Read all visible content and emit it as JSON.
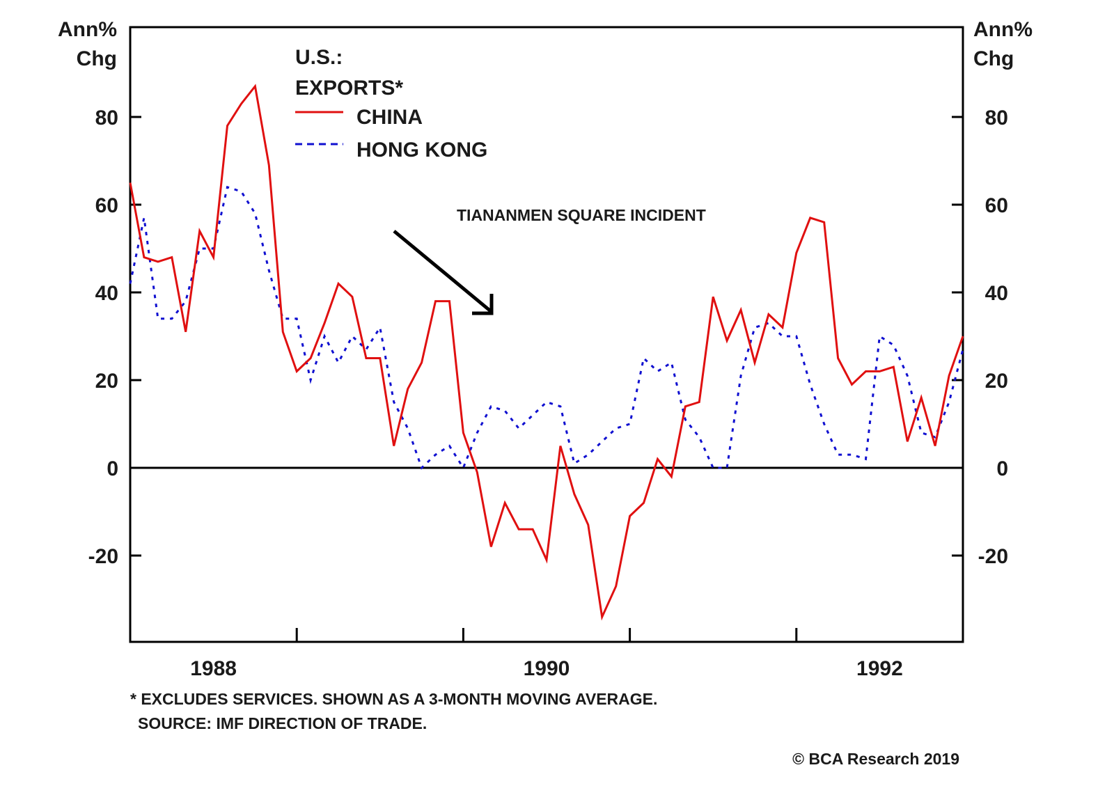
{
  "chart_data": {
    "type": "line",
    "title_lines": [
      "U.S.:",
      "EXPORTS*"
    ],
    "ylabel_left": [
      "Ann%",
      "Chg"
    ],
    "ylabel_right": [
      "Ann%",
      "Chg"
    ],
    "ylim": [
      -40,
      100
    ],
    "yticks": [
      -20,
      0,
      20,
      40,
      60,
      80
    ],
    "ytick_labels": [
      "-20",
      "0",
      "20",
      "40",
      "60",
      "80"
    ],
    "xlim": [
      1988.0,
      1993.0
    ],
    "xtick_boundaries": [
      1989,
      1990,
      1991,
      1992
    ],
    "xtick_labels": [
      {
        "label": "1988",
        "center": 1988.5
      },
      {
        "label": "1990",
        "center": 1990.5
      },
      {
        "label": "1992",
        "center": 1992.5
      }
    ],
    "zero_line": true,
    "grid": false,
    "legend_position": "top-left",
    "annotation": {
      "text": "TIANANMEN SQUARE INCIDENT",
      "arrow_points_to": 1989.43
    },
    "x": [
      1988.0,
      1988.083,
      1988.167,
      1988.25,
      1988.333,
      1988.417,
      1988.5,
      1988.583,
      1988.667,
      1988.75,
      1988.833,
      1988.917,
      1989.0,
      1989.083,
      1989.167,
      1989.25,
      1989.333,
      1989.417,
      1989.5,
      1989.583,
      1989.667,
      1989.75,
      1989.833,
      1989.917,
      1990.0,
      1990.083,
      1990.167,
      1990.25,
      1990.333,
      1990.417,
      1990.5,
      1990.583,
      1990.667,
      1990.75,
      1990.833,
      1990.917,
      1991.0,
      1991.083,
      1991.167,
      1991.25,
      1991.333,
      1991.417,
      1991.5,
      1991.583,
      1991.667,
      1991.75,
      1991.833,
      1991.917,
      1992.0,
      1992.083,
      1992.167,
      1992.25,
      1992.333,
      1992.417,
      1992.5,
      1992.583,
      1992.667,
      1992.75,
      1992.833,
      1992.917,
      1993.0
    ],
    "series": [
      {
        "name": "CHINA",
        "color": "#e01010",
        "style": "solid",
        "values": [
          65,
          48,
          47,
          48,
          31,
          54,
          48,
          78,
          83,
          87,
          69,
          31,
          22,
          25,
          33,
          42,
          39,
          25,
          25,
          5,
          18,
          24,
          38,
          38,
          8,
          -1,
          -18,
          -8,
          -14,
          -14,
          -21,
          5,
          -6,
          -13,
          -34,
          -27,
          -11,
          -8,
          2,
          -2,
          14,
          15,
          39,
          29,
          36,
          24,
          35,
          32,
          49,
          57,
          56,
          25,
          19,
          22,
          22,
          23,
          6,
          16,
          5,
          21,
          30
        ]
      },
      {
        "name": "HONG KONG",
        "color": "#1010d0",
        "style": "dashed",
        "values": [
          42,
          57,
          34,
          34,
          38,
          50,
          50,
          64,
          63,
          58,
          45,
          34,
          34,
          20,
          30,
          24,
          30,
          27,
          32,
          15,
          9,
          0,
          3,
          5,
          0,
          8,
          14,
          13,
          9,
          12,
          15,
          14,
          1,
          3,
          6,
          9,
          10,
          25,
          22,
          24,
          11,
          7,
          0,
          0,
          21,
          32,
          33,
          30,
          30,
          19,
          10,
          3,
          3,
          2,
          30,
          28,
          21,
          8,
          7,
          15,
          27
        ]
      }
    ],
    "footnotes": [
      "* EXCLUDES SERVICES. SHOWN AS A 3-MONTH MOVING AVERAGE.",
      "SOURCE: IMF DIRECTION OF TRADE."
    ],
    "credit": "© BCA Research 2019"
  }
}
